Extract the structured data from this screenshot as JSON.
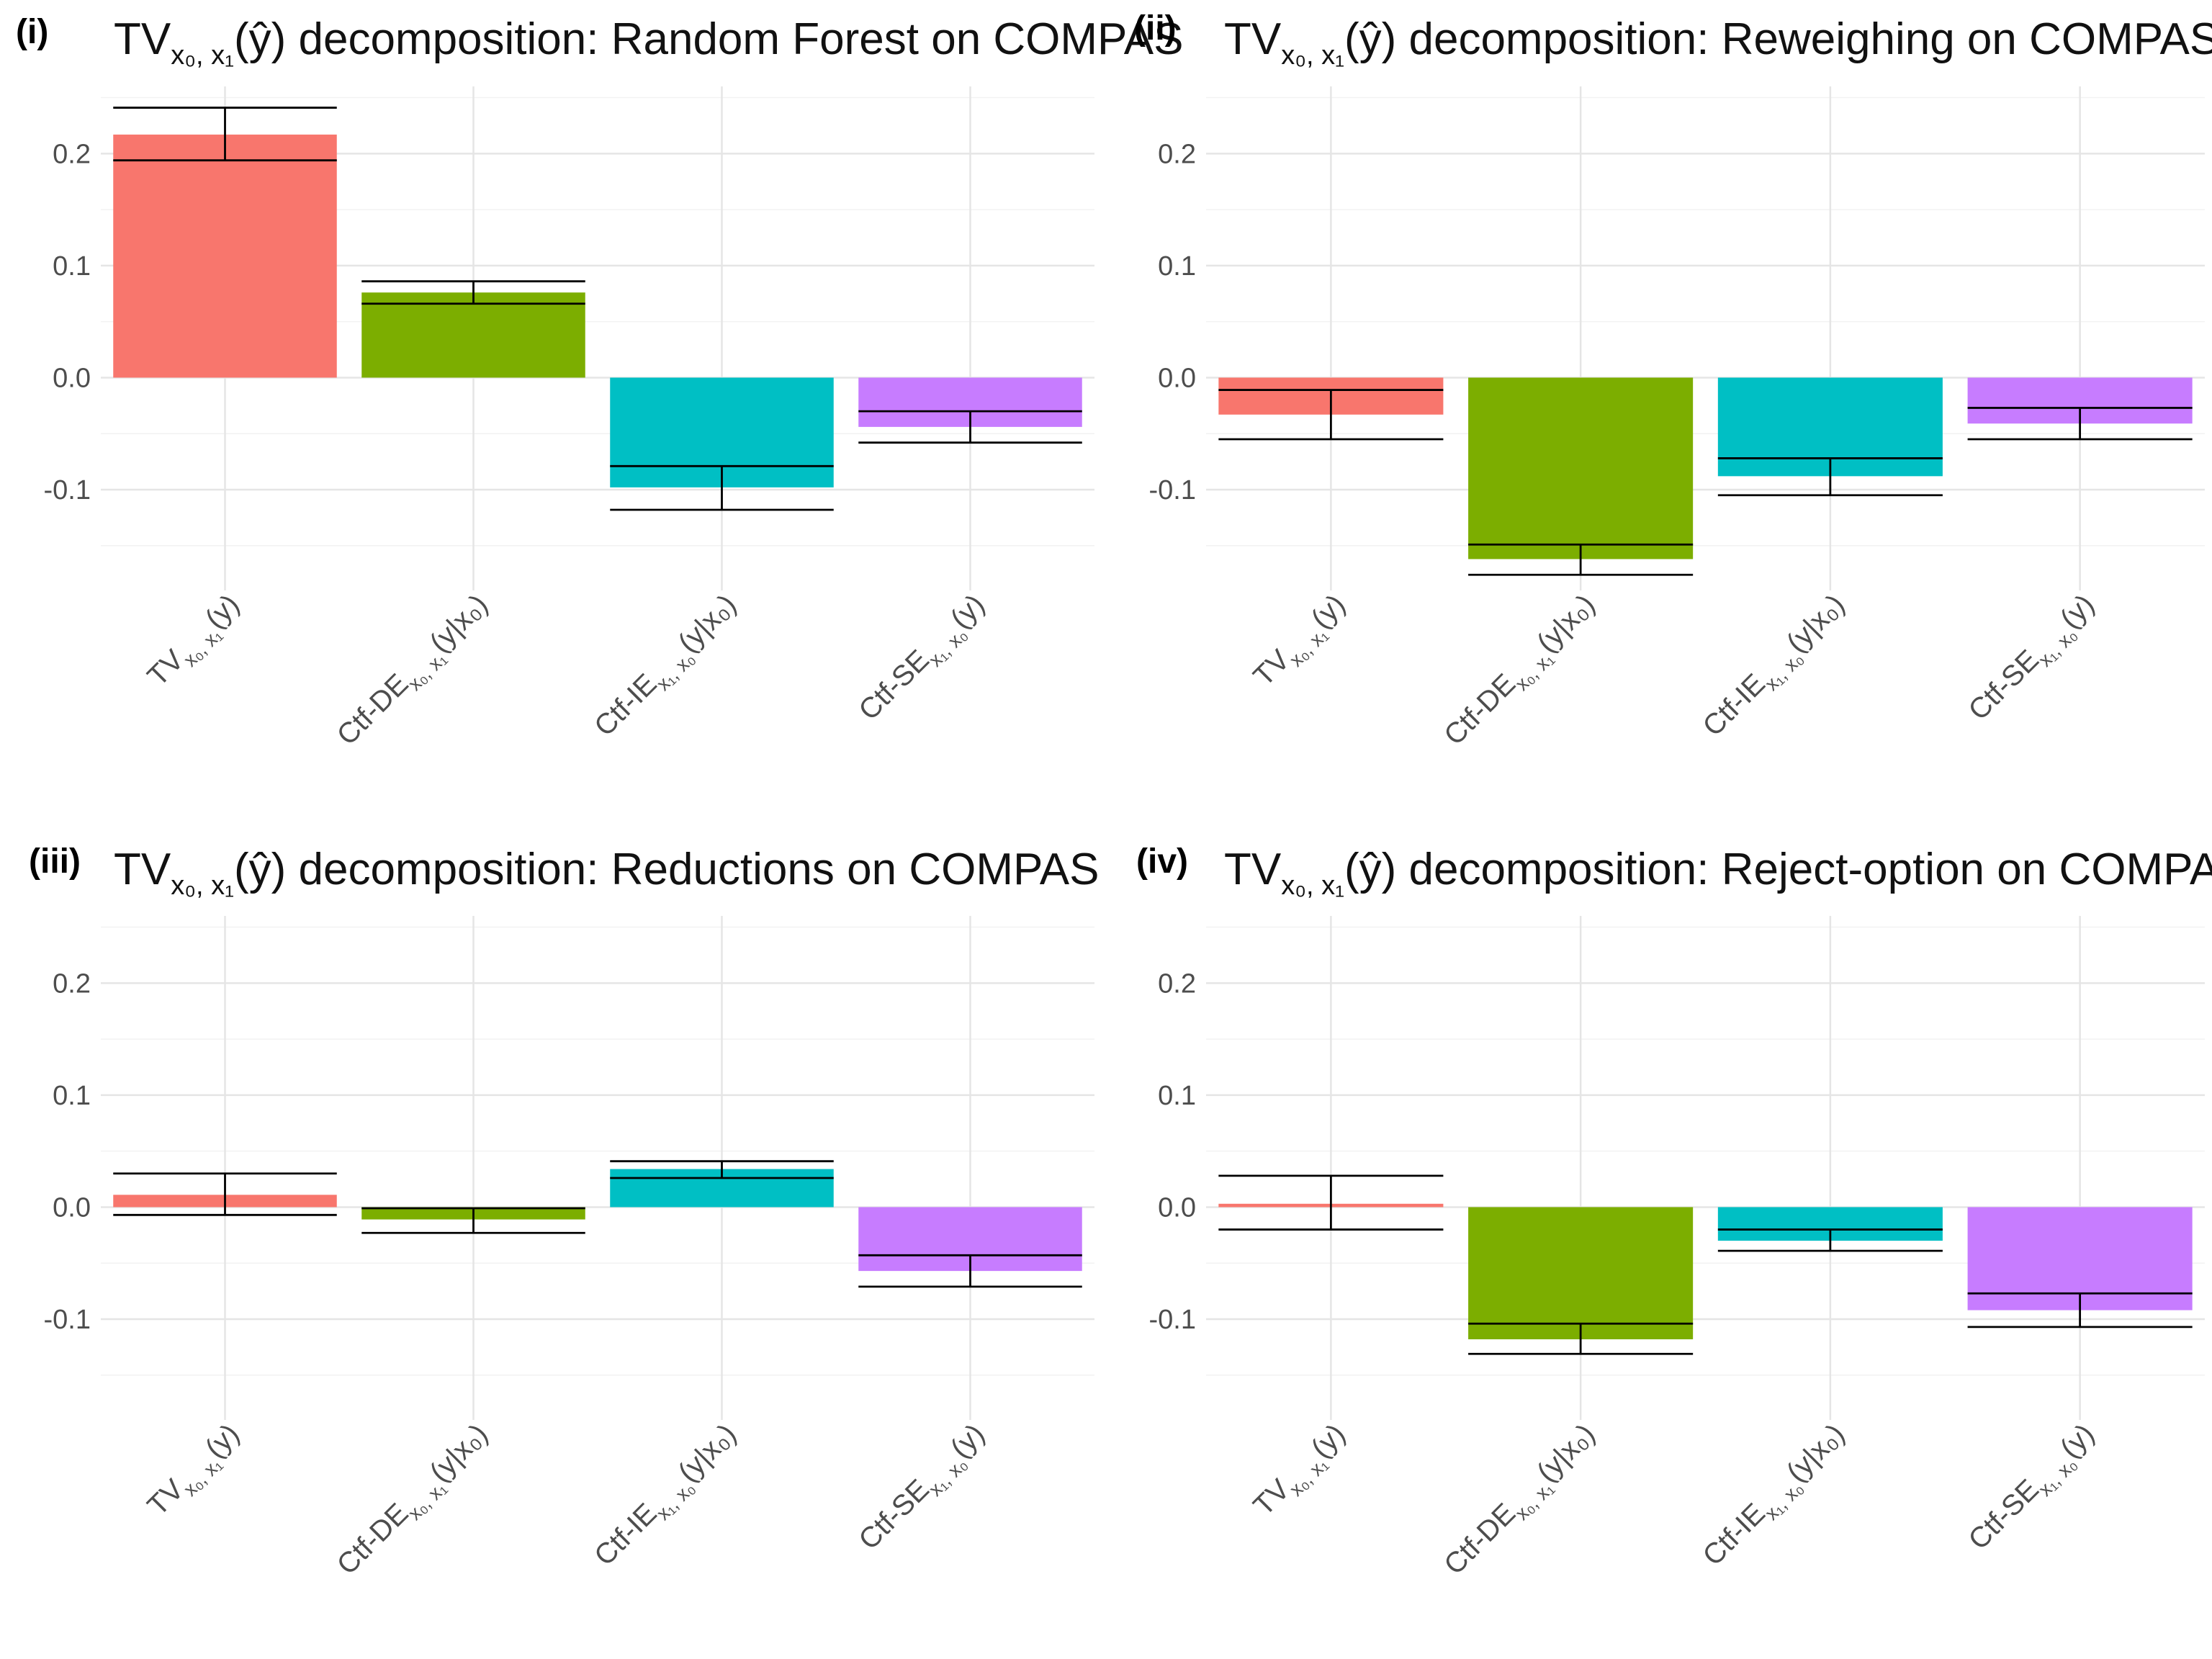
{
  "colors": {
    "tv": "#F8766D",
    "de": "#7CAE00",
    "ie": "#00BFC4",
    "se": "#C77CFF",
    "grid": "#e5e5e5",
    "text": "#4d4d4d"
  },
  "x_tick_labels": [
    {
      "base": "TV",
      "sub": "x₀, x₁",
      "args": "(y)"
    },
    {
      "base": "Ctf-DE",
      "sub": "x₀, x₁",
      "args": "(y|x₀)"
    },
    {
      "base": "Ctf-IE",
      "sub": "x₁, x₀",
      "args": "(y|x₀)"
    },
    {
      "base": "Ctf-SE",
      "sub": "x₁, x₀",
      "args": "(y)"
    }
  ],
  "chart_data": [
    {
      "type": "bar",
      "panel": "(i)",
      "title_prefix": "TV",
      "title_sub": "x₀, x₁",
      "title_args": "(ŷ)",
      "title": "decomposition: Random Forest on COMPAS",
      "categories": [
        "TV_{x0,x1}(y)",
        "Ctf-DE_{x0,x1}(y|x0)",
        "Ctf-IE_{x1,x0}(y|x0)",
        "Ctf-SE_{x1,x0}(y)"
      ],
      "values": [
        0.217,
        0.076,
        -0.098,
        -0.044
      ],
      "error_low": [
        0.194,
        0.066,
        -0.118,
        -0.058
      ],
      "error_high": [
        0.241,
        0.086,
        -0.079,
        -0.03
      ],
      "ylim": [
        -0.19,
        0.26
      ],
      "yticks": [
        0.2,
        0.1,
        0.0,
        -0.1
      ],
      "ytick_labels": [
        "0.2",
        "0.1",
        "0.0",
        "-0.1"
      ],
      "xlabel": "",
      "ylabel": "",
      "grid": true,
      "legend": "none"
    },
    {
      "type": "bar",
      "panel": "(ii)",
      "title_prefix": "TV",
      "title_sub": "x₀, x₁",
      "title_args": "(ŷ)",
      "title": "decomposition: Reweighing on COMPAS",
      "categories": [
        "TV_{x0,x1}(y)",
        "Ctf-DE_{x0,x1}(y|x0)",
        "Ctf-IE_{x1,x0}(y|x0)",
        "Ctf-SE_{x1,x0}(y)"
      ],
      "values": [
        -0.033,
        -0.162,
        -0.088,
        -0.041
      ],
      "error_low": [
        -0.055,
        -0.176,
        -0.105,
        -0.055
      ],
      "error_high": [
        -0.011,
        -0.149,
        -0.072,
        -0.027
      ],
      "ylim": [
        -0.19,
        0.26
      ],
      "yticks": [
        0.2,
        0.1,
        0.0,
        -0.1
      ],
      "ytick_labels": [
        "0.2",
        "0.1",
        "0.0",
        "-0.1"
      ],
      "xlabel": "",
      "ylabel": "",
      "grid": true,
      "legend": "none"
    },
    {
      "type": "bar",
      "panel": "(iii)",
      "title_prefix": "TV",
      "title_sub": "x₀, x₁",
      "title_args": "(ŷ)",
      "title": "decomposition: Reductions on COMPAS",
      "categories": [
        "TV_{x0,x1}(y)",
        "Ctf-DE_{x0,x1}(y|x0)",
        "Ctf-IE_{x1,x0}(y|x0)",
        "Ctf-SE_{x1,x0}(y)"
      ],
      "values": [
        0.011,
        -0.011,
        0.034,
        -0.057
      ],
      "error_low": [
        -0.007,
        -0.023,
        0.026,
        -0.071
      ],
      "error_high": [
        0.03,
        -0.001,
        0.041,
        -0.043
      ],
      "ylim": [
        -0.19,
        0.26
      ],
      "yticks": [
        0.2,
        0.1,
        0.0,
        -0.1
      ],
      "ytick_labels": [
        "0.2",
        "0.1",
        "0.0",
        "-0.1"
      ],
      "xlabel": "",
      "ylabel": "",
      "grid": true,
      "legend": "none"
    },
    {
      "type": "bar",
      "panel": "(iv)",
      "title_prefix": "TV",
      "title_sub": "x₀, x₁",
      "title_args": "(ŷ)",
      "title": "decomposition: Reject-option on COMPAS",
      "categories": [
        "TV_{x0,x1}(y)",
        "Ctf-DE_{x0,x1}(y|x0)",
        "Ctf-IE_{x1,x0}(y|x0)",
        "Ctf-SE_{x1,x0}(y)"
      ],
      "values": [
        0.003,
        -0.118,
        -0.03,
        -0.092
      ],
      "error_low": [
        -0.02,
        -0.131,
        -0.039,
        -0.107
      ],
      "error_high": [
        0.028,
        -0.104,
        -0.02,
        -0.077
      ],
      "ylim": [
        -0.19,
        0.26
      ],
      "yticks": [
        0.2,
        0.1,
        0.0,
        -0.1
      ],
      "ytick_labels": [
        "0.2",
        "0.1",
        "0.0",
        "-0.1"
      ],
      "xlabel": "",
      "ylabel": "",
      "grid": true,
      "legend": "none"
    }
  ]
}
